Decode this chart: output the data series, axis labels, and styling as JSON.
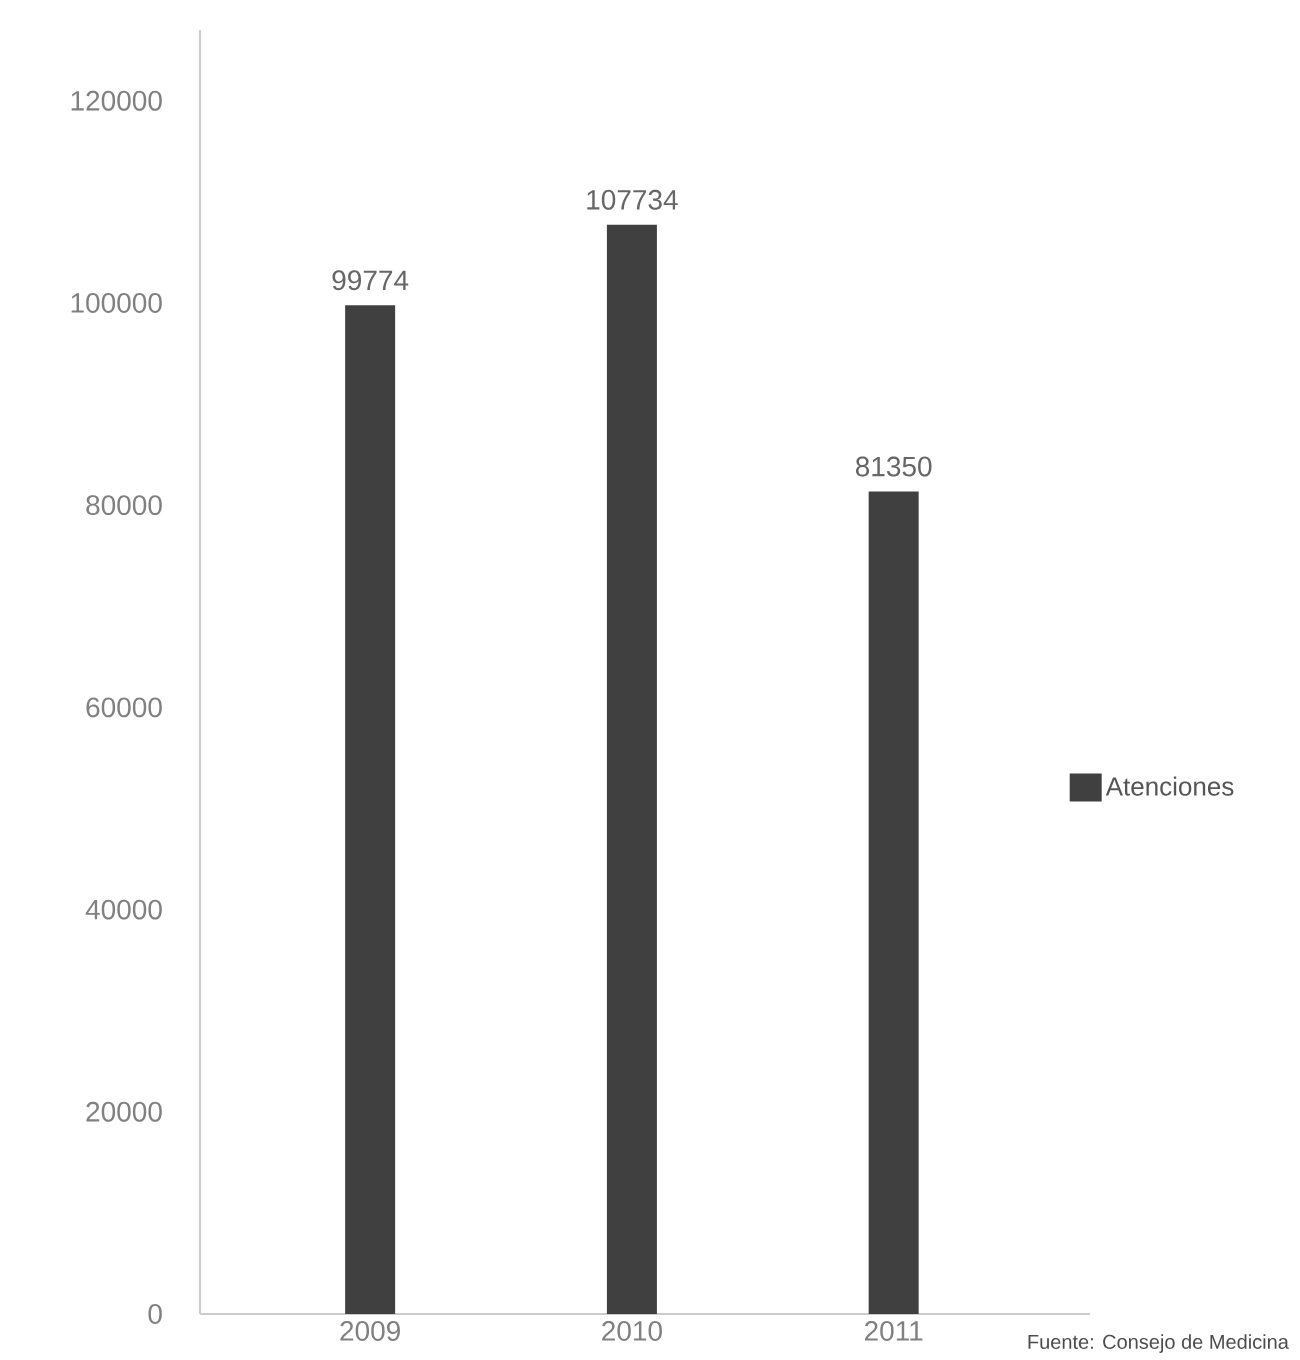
{
  "chart_data": {
    "type": "bar",
    "categories": [
      "2009",
      "2010",
      "2011"
    ],
    "series": [
      {
        "name": "Atenciones",
        "color": "#404040",
        "values": [
          99774,
          107734,
          81350
        ]
      }
    ],
    "ylim": [
      0,
      127000
    ],
    "yticks": [
      0,
      20000,
      40000,
      60000,
      80000,
      100000,
      120000
    ],
    "data_labels": true,
    "legend": "right",
    "grid": false,
    "annotations": [
      "Fuente: Consejo de Medicina"
    ]
  }
}
